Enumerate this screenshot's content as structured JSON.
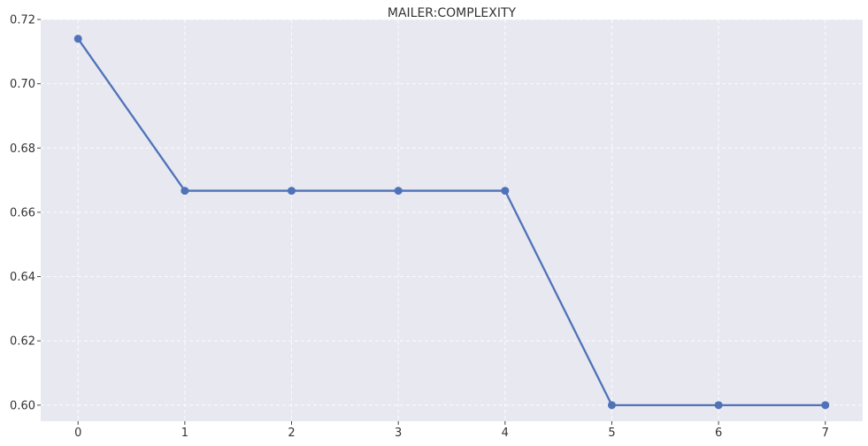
{
  "chart_data": {
    "type": "line",
    "title": "MAILER:COMPLEXITY",
    "xlabel": "",
    "ylabel": "",
    "x": [
      0,
      1,
      2,
      3,
      4,
      5,
      6,
      7
    ],
    "series": [
      {
        "values": [
          0.714,
          0.6667,
          0.6667,
          0.6667,
          0.6667,
          0.6,
          0.6,
          0.6
        ],
        "color": "#4f72b8",
        "marker": "circle"
      }
    ],
    "xticks": [
      "0",
      "1",
      "2",
      "3",
      "4",
      "5",
      "6",
      "7"
    ],
    "yticks": [
      "0.60",
      "0.62",
      "0.64",
      "0.66",
      "0.68",
      "0.70",
      "0.72"
    ],
    "ytick_values": [
      0.6,
      0.62,
      0.64,
      0.66,
      0.68,
      0.7,
      0.72
    ],
    "xlim": [
      -0.35,
      7.35
    ],
    "ylim": [
      0.595,
      0.72
    ],
    "grid": true,
    "grid_style": "dashed",
    "legend": "none",
    "plot_background": "#e8e8f1",
    "page_background": "#ffffff"
  }
}
